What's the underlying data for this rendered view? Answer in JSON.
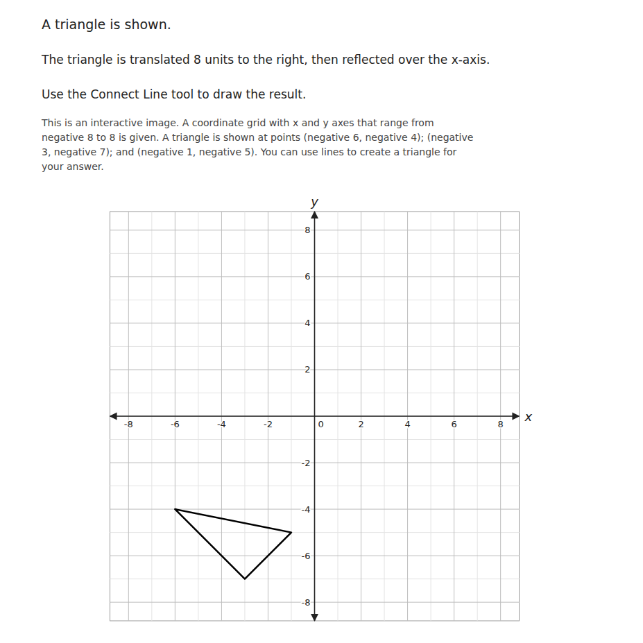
{
  "chart_data": {
    "type": "line",
    "title": "A triangle is shown.",
    "subtitle": "The triangle is translated 8 units to the right, then reflected over the x-axis.",
    "annotations": [
      "Use the Connect Line tool to draw the result.",
      "This is an interactive image. A coordinate grid with x and y axes that range from\nnegative 8 to 8 is given. A triangle is shown at points (negative 6, negative 4); (negative\n3, negative 7); and (negative 1, negative 5). You can use lines to create a triangle for\nyour answer."
    ],
    "x": [
      -6,
      -3,
      -1,
      -6
    ],
    "values": [
      -4,
      -7,
      -5,
      -4
    ],
    "color": "#000000",
    "xlabel": "x",
    "ylabel": "y",
    "xlim": [
      -8.8,
      8.8
    ],
    "ylim": [
      -8.8,
      8.8
    ],
    "xticks": [
      -8,
      -6,
      -4,
      -2,
      0,
      2,
      4,
      6,
      8
    ],
    "yticks": [
      -8,
      -6,
      -4,
      -2,
      0,
      2,
      4,
      6,
      8
    ],
    "grid": true
  }
}
